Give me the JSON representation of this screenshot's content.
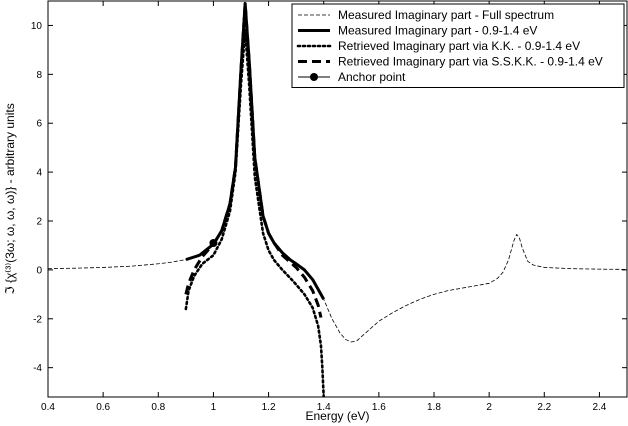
{
  "chart_data": {
    "type": "line",
    "xlabel": "Energy (eV)",
    "ylabel": "ℑ {χ⁽³⁾(3ω; ω, ω, ω)} - arbitrary units",
    "xlim": [
      0.4,
      2.5
    ],
    "ylim": [
      -5.2,
      11
    ],
    "xticks": [
      0.4,
      0.6,
      0.8,
      1,
      1.2,
      1.4,
      1.6,
      1.8,
      2,
      2.2,
      2.4
    ],
    "xtick_labels": [
      "0.4",
      "0.6",
      "0.8",
      "1",
      "1.2",
      "1.4",
      "1.6",
      "1.8",
      "2",
      "2.2",
      "2.4"
    ],
    "yticks": [
      -4,
      -2,
      0,
      2,
      4,
      6,
      8,
      10
    ],
    "ytick_labels": [
      "-4",
      "-2",
      "0",
      "2",
      "4",
      "6",
      "8",
      "10"
    ],
    "grid": false,
    "legend_position": "top-right",
    "series": [
      {
        "name": "Measured Imaginary part - Full spectrum",
        "style": "thin-dashed",
        "color": "#000000",
        "x": [
          0.4,
          0.5,
          0.6,
          0.7,
          0.8,
          0.85,
          0.9,
          0.95,
          1.0,
          1.03,
          1.06,
          1.08,
          1.1,
          1.115,
          1.13,
          1.15,
          1.18,
          1.2,
          1.22,
          1.25,
          1.28,
          1.3,
          1.33,
          1.36,
          1.4,
          1.43,
          1.46,
          1.48,
          1.5,
          1.52,
          1.55,
          1.6,
          1.65,
          1.7,
          1.75,
          1.8,
          1.85,
          1.9,
          1.95,
          2.0,
          2.03,
          2.05,
          2.07,
          2.08,
          2.09,
          2.1,
          2.11,
          2.12,
          2.14,
          2.16,
          2.2,
          2.3,
          2.4,
          2.5
        ],
        "y": [
          0.05,
          0.07,
          0.1,
          0.15,
          0.25,
          0.32,
          0.42,
          0.6,
          1.05,
          1.6,
          2.7,
          4.2,
          8.2,
          10.9,
          8.5,
          4.6,
          2.2,
          1.5,
          1.1,
          0.7,
          0.4,
          0.25,
          0.0,
          -0.4,
          -1.2,
          -2.0,
          -2.6,
          -2.85,
          -2.95,
          -2.9,
          -2.6,
          -2.1,
          -1.75,
          -1.45,
          -1.2,
          -1.0,
          -0.85,
          -0.75,
          -0.65,
          -0.55,
          -0.35,
          -0.1,
          0.4,
          0.8,
          1.2,
          1.45,
          1.3,
          0.9,
          0.35,
          0.2,
          0.1,
          0.05,
          0.03,
          0.02
        ]
      },
      {
        "name": "Measured Imaginary part - 0.9-1.4 eV",
        "style": "thick-solid",
        "color": "#000000",
        "x": [
          0.9,
          0.95,
          1.0,
          1.03,
          1.06,
          1.08,
          1.1,
          1.115,
          1.13,
          1.15,
          1.18,
          1.2,
          1.22,
          1.25,
          1.28,
          1.3,
          1.33,
          1.36,
          1.4
        ],
        "y": [
          0.42,
          0.6,
          1.05,
          1.6,
          2.7,
          4.2,
          8.2,
          10.9,
          8.5,
          4.6,
          2.2,
          1.5,
          1.1,
          0.7,
          0.4,
          0.25,
          0.0,
          -0.4,
          -1.2
        ]
      },
      {
        "name": "Retrieved Imaginary part via K.K. - 0.9-1.4 eV",
        "style": "dotted",
        "color": "#000000",
        "x": [
          0.9,
          0.91,
          0.93,
          0.96,
          1.0,
          1.03,
          1.06,
          1.08,
          1.1,
          1.115,
          1.13,
          1.15,
          1.18,
          1.2,
          1.22,
          1.25,
          1.28,
          1.3,
          1.33,
          1.36,
          1.38,
          1.39,
          1.395,
          1.4
        ],
        "y": [
          -1.6,
          -0.85,
          -0.25,
          0.25,
          0.6,
          1.25,
          2.4,
          4.0,
          7.6,
          9.8,
          7.5,
          3.8,
          1.5,
          0.8,
          0.4,
          0.0,
          -0.35,
          -0.6,
          -1.0,
          -1.55,
          -2.3,
          -3.1,
          -4.0,
          -5.2
        ]
      },
      {
        "name": "Retrieved Imaginary part via S.S.K.K. - 0.9-1.4 eV",
        "style": "thick-dashed",
        "color": "#000000",
        "x": [
          0.9,
          0.91,
          0.93,
          0.96,
          1.0,
          1.03,
          1.06,
          1.08,
          1.1,
          1.115,
          1.13,
          1.15,
          1.18,
          1.2,
          1.22,
          1.25,
          1.28,
          1.3,
          1.33,
          1.36,
          1.38,
          1.39
        ],
        "y": [
          -1.0,
          -0.55,
          0.0,
          0.55,
          1.05,
          1.6,
          2.7,
          4.2,
          8.2,
          10.9,
          8.5,
          4.6,
          2.2,
          1.5,
          1.1,
          0.6,
          0.3,
          0.1,
          -0.3,
          -0.85,
          -1.45,
          -1.95
        ]
      }
    ],
    "anchor": {
      "name": "Anchor point",
      "x": 1.0,
      "y": 1.1
    }
  }
}
